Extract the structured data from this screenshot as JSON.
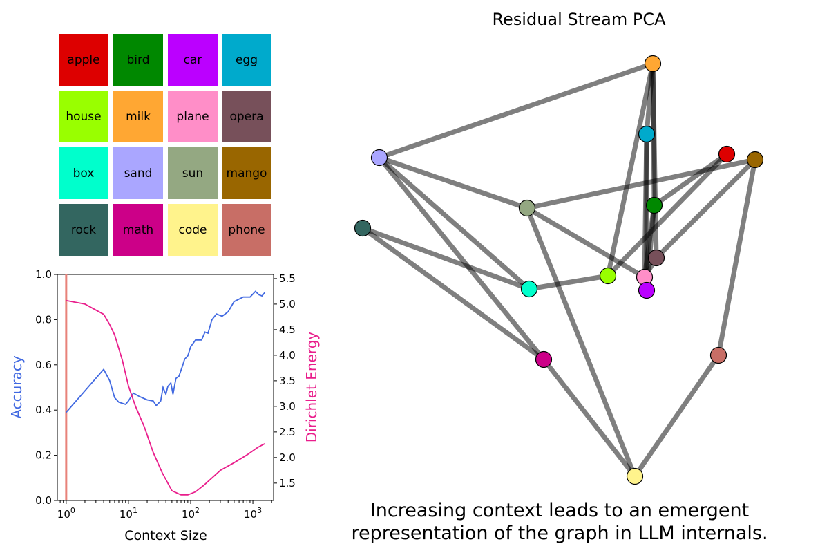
{
  "legend_grid": {
    "items": [
      {
        "label": "apple",
        "color": "#dd0000"
      },
      {
        "label": "bird",
        "color": "#008800"
      },
      {
        "label": "car",
        "color": "#bb00ff"
      },
      {
        "label": "egg",
        "color": "#00aacc"
      },
      {
        "label": "house",
        "color": "#99ff00"
      },
      {
        "label": "milk",
        "color": "#ffa733"
      },
      {
        "label": "plane",
        "color": "#ff8ec8"
      },
      {
        "label": "opera",
        "color": "#77505a"
      },
      {
        "label": "box",
        "color": "#00ffcc"
      },
      {
        "label": "sand",
        "color": "#aaa6ff"
      },
      {
        "label": "sun",
        "color": "#94a882"
      },
      {
        "label": "mango",
        "color": "#996600"
      },
      {
        "label": "rock",
        "color": "#336660"
      },
      {
        "label": "math",
        "color": "#cc0088"
      },
      {
        "label": "code",
        "color": "#fff38c"
      },
      {
        "label": "phone",
        "color": "#c86e66"
      }
    ]
  },
  "chart_data": [
    {
      "type": "line",
      "xlabel": "Context Size",
      "ylabel": "Accuracy",
      "ylabel_right": "Dirichlet Energy",
      "x_scale": "log",
      "xlim": [
        0.72,
        2150
      ],
      "ylim": [
        0.0,
        1.0
      ],
      "ylim_right": [
        1.16,
        5.58
      ],
      "x_ticks": [
        {
          "value": 1,
          "label": "10^0"
        },
        {
          "value": 10,
          "label": "10^1"
        },
        {
          "value": 100,
          "label": "10^2"
        },
        {
          "value": 1000,
          "label": "10^3"
        }
      ],
      "y_ticks": [
        "0.0",
        "0.2",
        "0.4",
        "0.6",
        "0.8",
        "1.0"
      ],
      "y_ticks_right": [
        "1.5",
        "2.0",
        "2.5",
        "3.0",
        "3.5",
        "4.0",
        "4.5",
        "5.0",
        "5.5"
      ],
      "grid": false,
      "vline": {
        "x": 1,
        "color": "#e8827a"
      },
      "series": [
        {
          "name": "Accuracy",
          "axis": "left",
          "color": "#4169e1",
          "x": [
            1,
            4,
            5,
            6,
            7,
            9,
            10,
            12,
            15,
            20,
            25,
            28,
            33,
            36,
            40,
            43,
            48,
            52,
            58,
            65,
            75,
            80,
            90,
            100,
            120,
            150,
            170,
            190,
            220,
            260,
            320,
            400,
            500,
            700,
            900,
            1100,
            1250,
            1400,
            1550
          ],
          "y": [
            0.39,
            0.58,
            0.53,
            0.455,
            0.435,
            0.425,
            0.44,
            0.475,
            0.46,
            0.445,
            0.44,
            0.42,
            0.44,
            0.5,
            0.47,
            0.505,
            0.52,
            0.47,
            0.54,
            0.55,
            0.6,
            0.625,
            0.64,
            0.68,
            0.71,
            0.71,
            0.745,
            0.74,
            0.8,
            0.825,
            0.815,
            0.835,
            0.88,
            0.9,
            0.9,
            0.925,
            0.91,
            0.905,
            0.92
          ]
        },
        {
          "name": "Dirichlet Energy",
          "axis": "right",
          "color": "#e91e8c",
          "x": [
            1,
            2,
            4,
            5,
            6,
            8,
            10,
            13,
            18,
            25,
            35,
            50,
            70,
            90,
            120,
            160,
            220,
            300,
            500,
            800,
            1200,
            1550
          ],
          "y": [
            5.07,
            5.0,
            4.8,
            4.6,
            4.4,
            3.9,
            3.4,
            3.0,
            2.6,
            2.1,
            1.7,
            1.35,
            1.27,
            1.27,
            1.33,
            1.45,
            1.6,
            1.75,
            1.9,
            2.05,
            2.2,
            2.27
          ]
        }
      ]
    },
    {
      "type": "network",
      "title": "Residual Stream PCA",
      "nodes": [
        {
          "id": "milk",
          "pc": [
            945,
            92
          ]
        },
        {
          "id": "egg",
          "pc": [
            936,
            194
          ]
        },
        {
          "id": "apple",
          "pc": [
            1052,
            223
          ]
        },
        {
          "id": "mango",
          "pc": [
            1093,
            231
          ]
        },
        {
          "id": "sand",
          "pc": [
            549,
            228
          ]
        },
        {
          "id": "sun",
          "pc": [
            763,
            301
          ]
        },
        {
          "id": "bird",
          "pc": [
            947,
            297
          ]
        },
        {
          "id": "rock",
          "pc": [
            525,
            330
          ]
        },
        {
          "id": "opera",
          "pc": [
            950,
            373
          ]
        },
        {
          "id": "house",
          "pc": [
            880,
            399
          ]
        },
        {
          "id": "plane",
          "pc": [
            933,
            401
          ]
        },
        {
          "id": "car",
          "pc": [
            936,
            420
          ]
        },
        {
          "id": "box",
          "pc": [
            766,
            418
          ]
        },
        {
          "id": "math",
          "pc": [
            787,
            520
          ]
        },
        {
          "id": "phone",
          "pc": [
            1040,
            514
          ]
        },
        {
          "id": "code",
          "pc": [
            919,
            689
          ]
        }
      ],
      "edges": [
        [
          "sand",
          "milk"
        ],
        [
          "sand",
          "sun"
        ],
        [
          "sand",
          "box"
        ],
        [
          "sand",
          "math"
        ],
        [
          "rock",
          "box"
        ],
        [
          "rock",
          "math"
        ],
        [
          "sun",
          "mango"
        ],
        [
          "sun",
          "plane"
        ],
        [
          "sun",
          "code"
        ],
        [
          "box",
          "house"
        ],
        [
          "house",
          "milk"
        ],
        [
          "house",
          "apple"
        ],
        [
          "apple",
          "bird"
        ],
        [
          "mango",
          "opera"
        ],
        [
          "mango",
          "phone"
        ],
        [
          "phone",
          "code"
        ],
        [
          "math",
          "code"
        ],
        [
          "milk",
          "egg"
        ],
        [
          "milk",
          "bird"
        ],
        [
          "milk",
          "opera"
        ],
        [
          "egg",
          "plane"
        ],
        [
          "egg",
          "car"
        ],
        [
          "bird",
          "plane"
        ],
        [
          "bird",
          "car"
        ],
        [
          "opera",
          "plane"
        ]
      ]
    }
  ],
  "caption": {
    "line1": "Increasing context leads to an emergent",
    "line2": "representation of the graph in LLM internals."
  }
}
